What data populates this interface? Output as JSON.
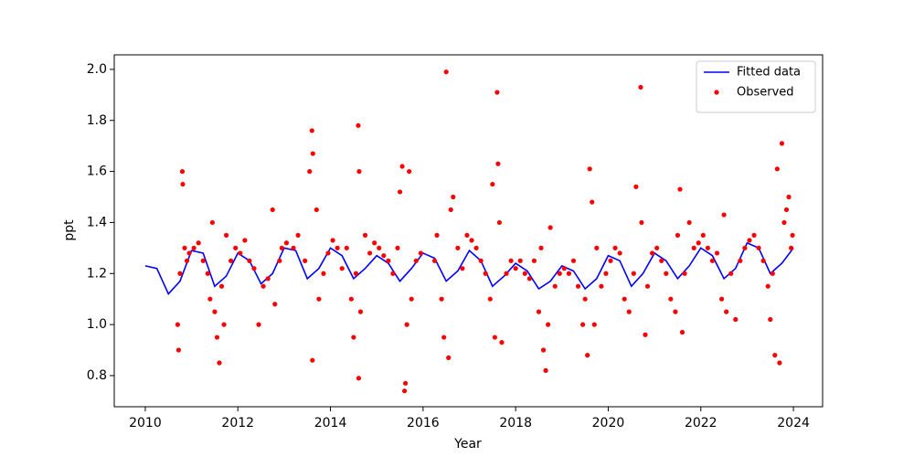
{
  "chart_data": {
    "type": "combo",
    "xlabel": "Year",
    "ylabel": "ppt",
    "xlim": [
      2009.33,
      2024.63
    ],
    "ylim": [
      0.678,
      2.057
    ],
    "xticks": [
      2010,
      2012,
      2014,
      2016,
      2018,
      2020,
      2022,
      2024
    ],
    "yticks": [
      0.8,
      {
        "value": 1.0,
        "label": "1.0"
      },
      1.2,
      1.4,
      1.6,
      1.8,
      {
        "value": 2.0,
        "label": "2.0"
      }
    ],
    "legend": "upper right",
    "series": [
      {
        "name": "Fitted data",
        "type": "line",
        "color": "#0000ff",
        "x": [
          2010,
          2010.25,
          2010.5,
          2010.75,
          2011,
          2011.25,
          2011.5,
          2011.75,
          2012,
          2012.25,
          2012.5,
          2012.75,
          2013,
          2013.25,
          2013.5,
          2013.75,
          2014,
          2014.25,
          2014.5,
          2014.75,
          2015,
          2015.25,
          2015.5,
          2015.75,
          2016,
          2016.25,
          2016.5,
          2016.75,
          2017,
          2017.25,
          2017.5,
          2017.75,
          2018,
          2018.25,
          2018.5,
          2018.75,
          2019,
          2019.25,
          2019.5,
          2019.75,
          2020,
          2020.25,
          2020.5,
          2020.75,
          2021,
          2021.25,
          2021.5,
          2021.75,
          2022,
          2022.25,
          2022.5,
          2022.75,
          2023,
          2023.25,
          2023.5,
          2023.75,
          2024
        ],
        "values": [
          1.23,
          1.22,
          1.12,
          1.17,
          1.29,
          1.28,
          1.15,
          1.19,
          1.28,
          1.25,
          1.16,
          1.2,
          1.3,
          1.29,
          1.18,
          1.22,
          1.3,
          1.27,
          1.18,
          1.22,
          1.27,
          1.24,
          1.17,
          1.22,
          1.28,
          1.26,
          1.17,
          1.21,
          1.29,
          1.25,
          1.15,
          1.19,
          1.24,
          1.21,
          1.14,
          1.17,
          1.23,
          1.21,
          1.14,
          1.18,
          1.27,
          1.25,
          1.15,
          1.2,
          1.28,
          1.25,
          1.18,
          1.23,
          1.3,
          1.27,
          1.18,
          1.22,
          1.32,
          1.3,
          1.2,
          1.24,
          1.3
        ]
      },
      {
        "name": "Observed",
        "type": "scatter",
        "color": "#ff0000",
        "x": [
          2010.7,
          2010.72,
          2010.75,
          2010.8,
          2010.81,
          2010.85,
          2010.9,
          2010.95,
          2011.05,
          2011.15,
          2011.25,
          2011.35,
          2011.4,
          2011.45,
          2011.5,
          2011.55,
          2011.6,
          2011.65,
          2011.7,
          2011.75,
          2011.85,
          2011.95,
          2012.05,
          2012.15,
          2012.25,
          2012.35,
          2012.45,
          2012.55,
          2012.65,
          2012.75,
          2012.8,
          2012.9,
          2012.95,
          2013.05,
          2013.2,
          2013.3,
          2013.45,
          2013.55,
          2013.6,
          2013.62,
          2013.61,
          2013.7,
          2013.75,
          2013.85,
          2013.95,
          2014.05,
          2014.15,
          2014.25,
          2014.35,
          2014.45,
          2014.5,
          2014.55,
          2014.6,
          2014.62,
          2014.61,
          2014.65,
          2014.75,
          2014.85,
          2014.95,
          2015.05,
          2015.15,
          2015.25,
          2015.35,
          2015.45,
          2015.5,
          2015.55,
          2015.6,
          2015.62,
          2015.65,
          2015.7,
          2015.75,
          2015.85,
          2015.95,
          2016.25,
          2016.3,
          2016.4,
          2016.45,
          2016.5,
          2016.55,
          2016.6,
          2016.65,
          2016.75,
          2016.85,
          2016.95,
          2017.05,
          2017.15,
          2017.25,
          2017.35,
          2017.45,
          2017.5,
          2017.55,
          2017.6,
          2017.62,
          2017.65,
          2017.7,
          2017.8,
          2017.9,
          2018.0,
          2018.1,
          2018.2,
          2018.3,
          2018.4,
          2018.5,
          2018.55,
          2018.6,
          2018.65,
          2018.7,
          2018.75,
          2018.85,
          2018.95,
          2019.05,
          2019.15,
          2019.25,
          2019.35,
          2019.45,
          2019.5,
          2019.55,
          2019.6,
          2019.65,
          2019.7,
          2019.75,
          2019.85,
          2019.95,
          2020.05,
          2020.15,
          2020.25,
          2020.35,
          2020.45,
          2020.55,
          2020.6,
          2020.7,
          2020.72,
          2020.8,
          2020.85,
          2020.95,
          2021.05,
          2021.15,
          2021.25,
          2021.35,
          2021.45,
          2021.5,
          2021.55,
          2021.6,
          2021.65,
          2021.75,
          2021.85,
          2021.95,
          2022.05,
          2022.15,
          2022.25,
          2022.35,
          2022.45,
          2022.5,
          2022.55,
          2022.65,
          2022.75,
          2022.85,
          2022.95,
          2023.05,
          2023.15,
          2023.25,
          2023.35,
          2023.45,
          2023.5,
          2023.55,
          2023.6,
          2023.65,
          2023.7,
          2023.75,
          2023.8,
          2023.85,
          2023.9,
          2023.95,
          2023.98
        ],
        "values": [
          1.0,
          0.9,
          1.2,
          1.6,
          1.55,
          1.3,
          1.25,
          1.28,
          1.3,
          1.32,
          1.25,
          1.2,
          1.1,
          1.4,
          1.05,
          0.95,
          0.85,
          1.15,
          1.0,
          1.35,
          1.25,
          1.3,
          1.28,
          1.33,
          1.25,
          1.22,
          1.0,
          1.15,
          1.18,
          1.45,
          1.08,
          1.25,
          1.3,
          1.32,
          1.3,
          1.35,
          1.25,
          1.6,
          1.76,
          1.67,
          0.86,
          1.45,
          1.1,
          1.2,
          1.28,
          1.33,
          1.3,
          1.22,
          1.3,
          1.1,
          0.95,
          1.2,
          1.78,
          1.6,
          0.79,
          1.05,
          1.35,
          1.28,
          1.32,
          1.3,
          1.27,
          1.25,
          1.2,
          1.3,
          1.52,
          1.62,
          0.74,
          0.77,
          1.0,
          1.6,
          1.1,
          1.25,
          1.28,
          1.25,
          1.35,
          1.1,
          0.95,
          1.99,
          0.87,
          1.45,
          1.5,
          1.3,
          1.22,
          1.35,
          1.33,
          1.3,
          1.25,
          1.2,
          1.1,
          1.55,
          0.95,
          1.91,
          1.63,
          1.4,
          0.93,
          1.2,
          1.25,
          1.22,
          1.25,
          1.2,
          1.18,
          1.25,
          1.05,
          1.3,
          0.9,
          0.82,
          1.0,
          1.38,
          1.15,
          1.2,
          1.22,
          1.2,
          1.25,
          1.15,
          1.0,
          1.1,
          0.88,
          1.61,
          1.48,
          1.0,
          1.3,
          1.15,
          1.2,
          1.25,
          1.3,
          1.28,
          1.1,
          1.05,
          1.2,
          1.54,
          1.93,
          1.4,
          0.96,
          1.15,
          1.28,
          1.3,
          1.25,
          1.2,
          1.1,
          1.05,
          1.35,
          1.53,
          0.97,
          1.2,
          1.4,
          1.3,
          1.32,
          1.35,
          1.3,
          1.25,
          1.28,
          1.1,
          1.43,
          1.05,
          1.2,
          1.02,
          1.25,
          1.3,
          1.33,
          1.35,
          1.3,
          1.25,
          1.15,
          1.02,
          1.2,
          0.88,
          1.61,
          0.85,
          1.71,
          1.4,
          1.45,
          1.5,
          1.3,
          1.35
        ]
      }
    ]
  }
}
